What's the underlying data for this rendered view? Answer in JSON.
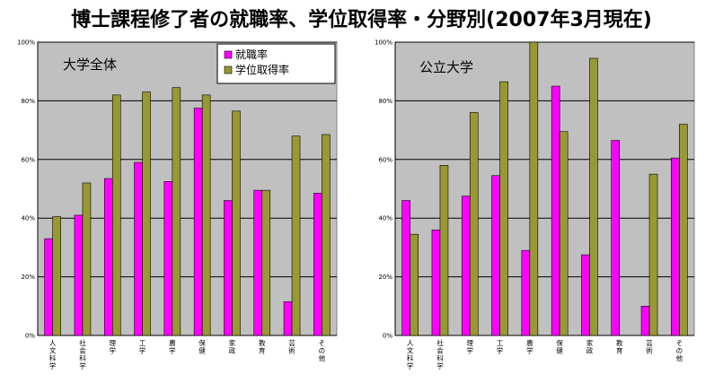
{
  "page": {
    "title": "博士課程修了者の就職率、学位取得率・分野別(2007年3月現在)"
  },
  "colors": {
    "series1": "#ff00ff",
    "series2": "#999933",
    "plot_bg": "#c0c0c0",
    "grid": "#000000"
  },
  "legend": {
    "placement": "top-right",
    "items": [
      "就職率",
      "学位取得率"
    ]
  },
  "chart_data": [
    {
      "type": "bar",
      "title": "大学全体",
      "categories": [
        "人文科学",
        "社会科学",
        "理学",
        "工学",
        "農学",
        "保健",
        "家政",
        "教育",
        "芸術",
        "その他"
      ],
      "series": [
        {
          "name": "就職率",
          "values": [
            33,
            41,
            53.5,
            59,
            52.5,
            77.5,
            46,
            49.5,
            11.5,
            48.5
          ]
        },
        {
          "name": "学位取得率",
          "values": [
            40.5,
            52,
            82,
            83,
            84.5,
            82,
            76.5,
            49.5,
            68,
            68.5
          ]
        }
      ],
      "yticks": [
        "0%",
        "20%",
        "40%",
        "60%",
        "80%",
        "100%"
      ],
      "ylim": [
        0,
        100
      ],
      "grid": true
    },
    {
      "type": "bar",
      "title": "公立大学",
      "categories": [
        "人文科学",
        "社会科学",
        "理学",
        "工学",
        "農学",
        "保健",
        "家政",
        "教育",
        "芸術",
        "その他"
      ],
      "series": [
        {
          "name": "就職率",
          "values": [
            46,
            36,
            47.5,
            54.5,
            29,
            85,
            27.5,
            66.5,
            10,
            60.5
          ]
        },
        {
          "name": "学位取得率",
          "values": [
            34.5,
            58,
            76,
            86.5,
            100,
            69.5,
            94.5,
            0,
            55,
            72
          ]
        }
      ],
      "yticks": [
        "0%",
        "20%",
        "40%",
        "60%",
        "80%",
        "100%"
      ],
      "ylim": [
        0,
        100
      ],
      "grid": true
    }
  ]
}
